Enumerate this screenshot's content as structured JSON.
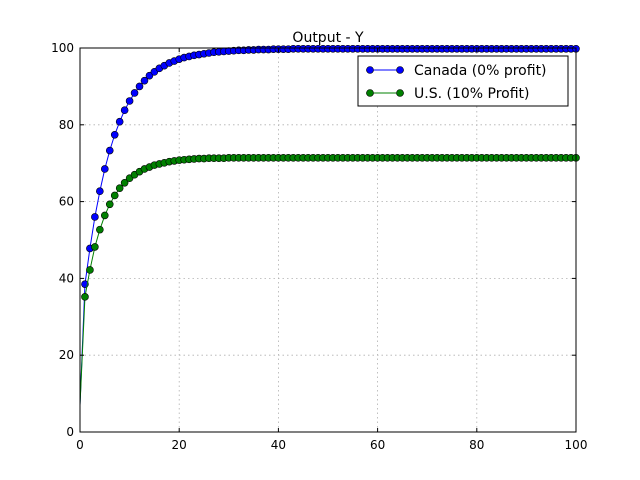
{
  "chart_data": {
    "type": "line",
    "title": "Output - Y",
    "xlabel": "",
    "ylabel": "",
    "xlim": [
      0,
      100
    ],
    "ylim": [
      0,
      100
    ],
    "xticks": [
      0,
      20,
      40,
      60,
      80,
      100
    ],
    "yticks": [
      0,
      20,
      40,
      60,
      80,
      100
    ],
    "grid": true,
    "legend_position": "top-right",
    "series": [
      {
        "name": "Canada (0% profit)",
        "color": "#0000ff",
        "marker": "circle",
        "steady_state": 100,
        "x": [
          0,
          1,
          2,
          3,
          4,
          5,
          6,
          7,
          8,
          9,
          10,
          11,
          12,
          13,
          14,
          15,
          16,
          17,
          18,
          19,
          20,
          21,
          22,
          23,
          24,
          25,
          26,
          27,
          28,
          29,
          30,
          31,
          32,
          33,
          34,
          35,
          36,
          37,
          38,
          39,
          40,
          41,
          42,
          43,
          44,
          45,
          46,
          47,
          48,
          49,
          50,
          51,
          52,
          53,
          54,
          55,
          56,
          57,
          58,
          59,
          60,
          61,
          62,
          63,
          64,
          65,
          66,
          67,
          68,
          69,
          70,
          71,
          72,
          73,
          74,
          75,
          76,
          77,
          78,
          79,
          80,
          81,
          82,
          83,
          84,
          85,
          86,
          87,
          88,
          89,
          90,
          91,
          92,
          93,
          94,
          95,
          96,
          97,
          98,
          99,
          100
        ],
        "values": [
          7.0,
          38.5,
          47.8,
          56.0,
          62.7,
          68.5,
          73.3,
          77.4,
          80.8,
          83.8,
          86.2,
          88.3,
          90.0,
          91.5,
          92.8,
          93.8,
          94.7,
          95.4,
          96.1,
          96.6,
          97.1,
          97.5,
          97.8,
          98.1,
          98.3,
          98.5,
          98.7,
          98.9,
          99.0,
          99.1,
          99.2,
          99.3,
          99.4,
          99.4,
          99.5,
          99.5,
          99.6,
          99.6,
          99.6,
          99.7,
          99.7,
          99.7,
          99.7,
          99.8,
          99.8,
          99.8,
          99.8,
          99.8,
          99.8,
          99.8,
          99.8,
          99.8,
          99.8,
          99.8,
          99.8,
          99.8,
          99.8,
          99.8,
          99.8,
          99.8,
          99.8,
          99.8,
          99.8,
          99.8,
          99.8,
          99.8,
          99.8,
          99.8,
          99.8,
          99.8,
          99.8,
          99.8,
          99.8,
          99.8,
          99.8,
          99.8,
          99.8,
          99.8,
          99.8,
          99.8,
          99.8,
          99.8,
          99.8,
          99.8,
          99.8,
          99.8,
          99.8,
          99.8,
          99.8,
          99.8,
          99.8,
          99.8,
          99.8,
          99.8,
          99.8,
          99.8,
          99.8,
          99.8,
          99.8,
          99.8,
          99.8
        ]
      },
      {
        "name": "U.S. (10% Profit)",
        "color": "#008000",
        "marker": "circle",
        "steady_state": 71.4,
        "x": [
          0,
          1,
          2,
          3,
          4,
          5,
          6,
          7,
          8,
          9,
          10,
          11,
          12,
          13,
          14,
          15,
          16,
          17,
          18,
          19,
          20,
          21,
          22,
          23,
          24,
          25,
          26,
          27,
          28,
          29,
          30,
          31,
          32,
          33,
          34,
          35,
          36,
          37,
          38,
          39,
          40,
          41,
          42,
          43,
          44,
          45,
          46,
          47,
          48,
          49,
          50,
          51,
          52,
          53,
          54,
          55,
          56,
          57,
          58,
          59,
          60,
          61,
          62,
          63,
          64,
          65,
          66,
          67,
          68,
          69,
          70,
          71,
          72,
          73,
          74,
          75,
          76,
          77,
          78,
          79,
          80,
          81,
          82,
          83,
          84,
          85,
          86,
          87,
          88,
          89,
          90,
          91,
          92,
          93,
          94,
          95,
          96,
          97,
          98,
          99,
          100
        ],
        "values": [
          7.0,
          35.2,
          42.2,
          48.2,
          52.7,
          56.4,
          59.3,
          61.6,
          63.5,
          64.9,
          66.1,
          67.0,
          67.8,
          68.5,
          69.0,
          69.5,
          69.8,
          70.1,
          70.4,
          70.6,
          70.8,
          70.9,
          71.0,
          71.1,
          71.2,
          71.2,
          71.3,
          71.3,
          71.3,
          71.3,
          71.4,
          71.4,
          71.4,
          71.4,
          71.4,
          71.4,
          71.4,
          71.4,
          71.4,
          71.4,
          71.4,
          71.4,
          71.4,
          71.4,
          71.4,
          71.4,
          71.4,
          71.4,
          71.4,
          71.4,
          71.4,
          71.4,
          71.4,
          71.4,
          71.4,
          71.4,
          71.4,
          71.4,
          71.4,
          71.4,
          71.4,
          71.4,
          71.4,
          71.4,
          71.4,
          71.4,
          71.4,
          71.4,
          71.4,
          71.4,
          71.4,
          71.4,
          71.4,
          71.4,
          71.4,
          71.4,
          71.4,
          71.4,
          71.4,
          71.4,
          71.4,
          71.4,
          71.4,
          71.4,
          71.4,
          71.4,
          71.4,
          71.4,
          71.4,
          71.4,
          71.4,
          71.4,
          71.4,
          71.4,
          71.4,
          71.4,
          71.4,
          71.4,
          71.4,
          71.4,
          71.4
        ]
      }
    ]
  }
}
